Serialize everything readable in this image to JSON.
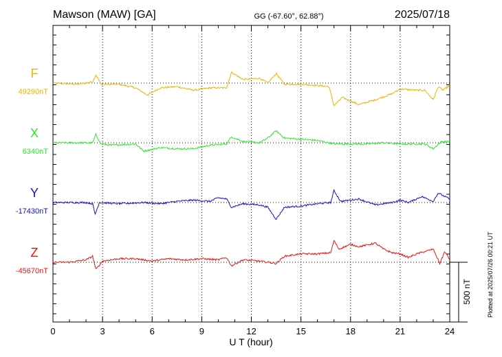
{
  "header": {
    "station": "Mawson (MAW)  [GA]",
    "coords": "GG (-67.60°,  62.88°)",
    "date": "2025/07/18"
  },
  "footer": {
    "plotted": "Plotted at 2025/07/26 00:21 UT"
  },
  "scale_bar": {
    "label": "500 nT",
    "value_nT": 500
  },
  "chart_data": {
    "type": "line",
    "title": "Mawson (MAW)  [GA]",
    "xlabel": "U T (hour)",
    "ylabel": "",
    "xlim": [
      0,
      24
    ],
    "x_ticks": [
      "0",
      "3",
      "6",
      "9",
      "12",
      "15",
      "18",
      "21",
      "24"
    ],
    "grid": true,
    "vertical_scale_nT_per_bar": 500,
    "series": [
      {
        "name": "F",
        "baseline_label": "49290nT",
        "baseline_nT": 49290,
        "color": "#f2b200",
        "points": [
          [
            0,
            49290
          ],
          [
            1.5,
            49280
          ],
          [
            2.4,
            49300
          ],
          [
            2.6,
            49360
          ],
          [
            2.9,
            49280
          ],
          [
            4.0,
            49280
          ],
          [
            5.0,
            49250
          ],
          [
            5.7,
            49190
          ],
          [
            6.5,
            49250
          ],
          [
            7.5,
            49260
          ],
          [
            8.5,
            49230
          ],
          [
            9.5,
            49250
          ],
          [
            10.5,
            49250
          ],
          [
            10.8,
            49380
          ],
          [
            11.5,
            49320
          ],
          [
            12.5,
            49330
          ],
          [
            13.0,
            49290
          ],
          [
            13.5,
            49370
          ],
          [
            14.0,
            49280
          ],
          [
            15.0,
            49280
          ],
          [
            16.0,
            49270
          ],
          [
            16.7,
            49260
          ],
          [
            17.0,
            49100
          ],
          [
            17.5,
            49170
          ],
          [
            18.5,
            49110
          ],
          [
            19.5,
            49150
          ],
          [
            20.5,
            49200
          ],
          [
            21.0,
            49240
          ],
          [
            22.0,
            49230
          ],
          [
            22.5,
            49230
          ],
          [
            23.0,
            49150
          ],
          [
            23.3,
            49260
          ],
          [
            23.6,
            49230
          ],
          [
            24.0,
            49270
          ]
        ]
      },
      {
        "name": "X",
        "baseline_label": "6340nT",
        "baseline_nT": 6340,
        "color": "#22ee22",
        "points": [
          [
            0,
            6340
          ],
          [
            1.5,
            6340
          ],
          [
            2.4,
            6340
          ],
          [
            2.6,
            6410
          ],
          [
            2.9,
            6330
          ],
          [
            3.5,
            6320
          ],
          [
            5.0,
            6330
          ],
          [
            5.5,
            6270
          ],
          [
            6.5,
            6300
          ],
          [
            7.5,
            6290
          ],
          [
            8.5,
            6290
          ],
          [
            9.5,
            6320
          ],
          [
            10.5,
            6330
          ],
          [
            10.8,
            6390
          ],
          [
            11.5,
            6350
          ],
          [
            12.5,
            6340
          ],
          [
            13.0,
            6380
          ],
          [
            13.5,
            6440
          ],
          [
            14.0,
            6380
          ],
          [
            15.0,
            6370
          ],
          [
            16.0,
            6360
          ],
          [
            17.0,
            6330
          ],
          [
            18.0,
            6330
          ],
          [
            19.0,
            6330
          ],
          [
            20.0,
            6340
          ],
          [
            21.0,
            6330
          ],
          [
            22.0,
            6330
          ],
          [
            22.5,
            6330
          ],
          [
            23.0,
            6290
          ],
          [
            23.5,
            6350
          ],
          [
            24.0,
            6350
          ]
        ]
      },
      {
        "name": "Y",
        "baseline_label": "-17430nT",
        "baseline_nT": -17430,
        "color": "#1010cc",
        "points": [
          [
            0,
            -17430
          ],
          [
            2.0,
            -17430
          ],
          [
            2.4,
            -17440
          ],
          [
            2.55,
            -17530
          ],
          [
            2.8,
            -17430
          ],
          [
            4.0,
            -17440
          ],
          [
            5.5,
            -17430
          ],
          [
            6.5,
            -17440
          ],
          [
            7.5,
            -17420
          ],
          [
            8.5,
            -17410
          ],
          [
            9.5,
            -17420
          ],
          [
            10.0,
            -17390
          ],
          [
            10.5,
            -17400
          ],
          [
            10.8,
            -17470
          ],
          [
            11.5,
            -17440
          ],
          [
            12.5,
            -17450
          ],
          [
            13.0,
            -17470
          ],
          [
            13.5,
            -17570
          ],
          [
            14.0,
            -17470
          ],
          [
            15.0,
            -17460
          ],
          [
            16.0,
            -17440
          ],
          [
            16.8,
            -17430
          ],
          [
            17.0,
            -17330
          ],
          [
            17.4,
            -17420
          ],
          [
            18.0,
            -17410
          ],
          [
            18.5,
            -17400
          ],
          [
            19.5,
            -17450
          ],
          [
            20.5,
            -17430
          ],
          [
            21.0,
            -17410
          ],
          [
            21.5,
            -17430
          ],
          [
            22.3,
            -17380
          ],
          [
            23.0,
            -17420
          ],
          [
            23.3,
            -17350
          ],
          [
            23.7,
            -17380
          ],
          [
            24.0,
            -17400
          ]
        ]
      },
      {
        "name": "Z",
        "baseline_label": "-45670nT",
        "baseline_nT": -45670,
        "color": "#ee1111",
        "points": [
          [
            0,
            -45670
          ],
          [
            1.0,
            -45670
          ],
          [
            2.0,
            -45650
          ],
          [
            2.4,
            -45620
          ],
          [
            2.6,
            -45730
          ],
          [
            3.0,
            -45660
          ],
          [
            4.0,
            -45640
          ],
          [
            5.0,
            -45640
          ],
          [
            6.0,
            -45660
          ],
          [
            7.0,
            -45640
          ],
          [
            8.0,
            -45650
          ],
          [
            9.0,
            -45640
          ],
          [
            10.0,
            -45650
          ],
          [
            10.5,
            -45630
          ],
          [
            10.8,
            -45700
          ],
          [
            11.5,
            -45650
          ],
          [
            12.5,
            -45660
          ],
          [
            13.5,
            -45680
          ],
          [
            14.0,
            -45620
          ],
          [
            15.0,
            -45600
          ],
          [
            16.0,
            -45600
          ],
          [
            16.8,
            -45590
          ],
          [
            17.0,
            -45490
          ],
          [
            17.3,
            -45560
          ],
          [
            18.0,
            -45520
          ],
          [
            18.5,
            -45540
          ],
          [
            19.5,
            -45510
          ],
          [
            20.0,
            -45560
          ],
          [
            20.5,
            -45590
          ],
          [
            21.0,
            -45600
          ],
          [
            21.5,
            -45630
          ],
          [
            22.0,
            -45600
          ],
          [
            23.0,
            -45560
          ],
          [
            23.4,
            -45680
          ],
          [
            23.7,
            -45580
          ],
          [
            24.0,
            -45650
          ]
        ]
      }
    ]
  }
}
